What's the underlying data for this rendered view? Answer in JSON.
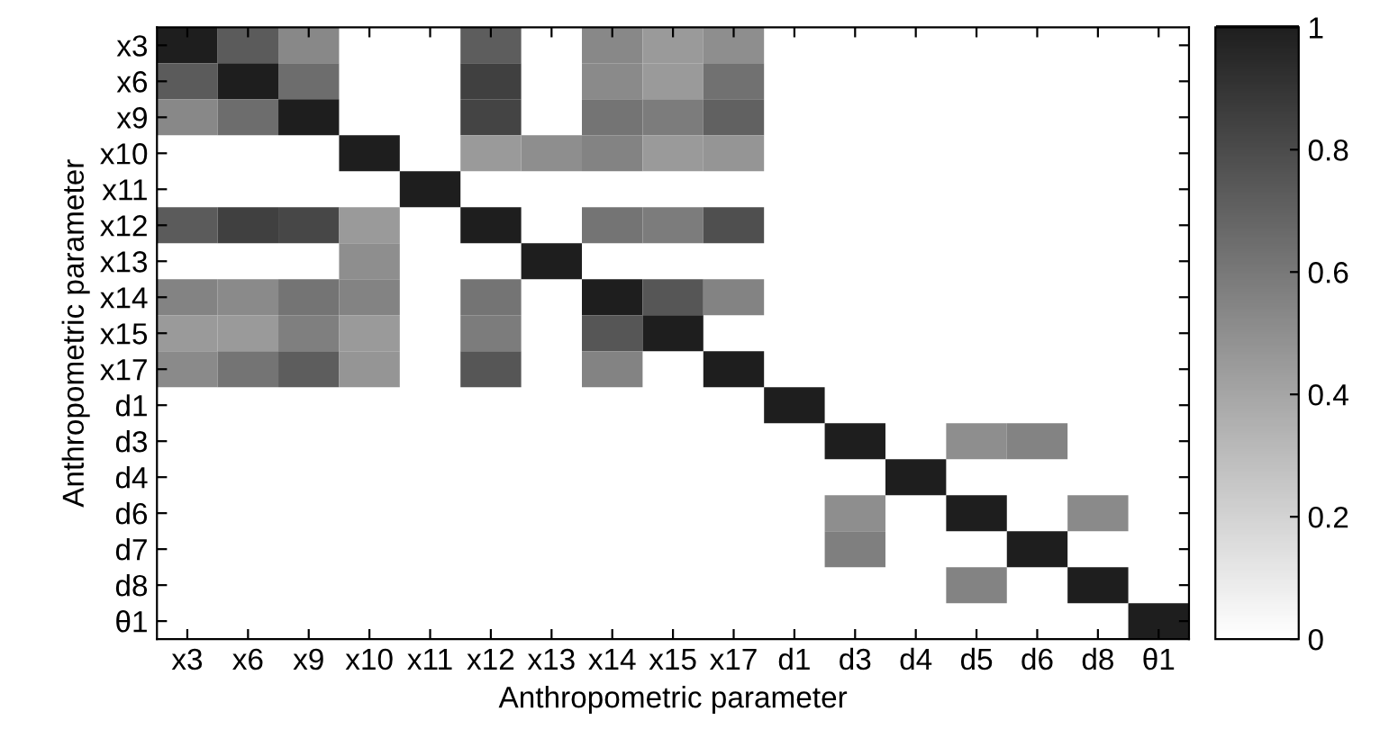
{
  "chart_data": {
    "type": "heatmap",
    "xlabel": "Anthropometric parameter",
    "ylabel": "Anthropometric parameter",
    "categories": [
      "x3",
      "x6",
      "x9",
      "x10",
      "x11",
      "x12",
      "x13",
      "x14",
      "x15",
      "x17",
      "d1",
      "d3",
      "d4",
      "d5",
      "d6",
      "d8",
      "θ1"
    ],
    "y_categories": [
      "x3",
      "x6",
      "x9",
      "x10",
      "x11",
      "x12",
      "x13",
      "x14",
      "x15",
      "x17",
      "d1",
      "d3",
      "d4",
      "d6",
      "d7",
      "d8",
      "θ1"
    ],
    "cells": [
      [
        1,
        0.73,
        0.53,
        null,
        null,
        0.72,
        null,
        0.53,
        0.45,
        0.5,
        null,
        null,
        null,
        null,
        null,
        null,
        null
      ],
      [
        0.73,
        1,
        0.65,
        null,
        null,
        0.85,
        null,
        0.52,
        0.45,
        0.63,
        null,
        null,
        null,
        null,
        null,
        null,
        null
      ],
      [
        0.53,
        0.65,
        1,
        null,
        null,
        0.83,
        null,
        0.62,
        0.58,
        0.7,
        null,
        null,
        null,
        null,
        null,
        null,
        null
      ],
      [
        null,
        null,
        null,
        1,
        null,
        0.45,
        0.5,
        0.55,
        0.45,
        0.47,
        null,
        null,
        null,
        null,
        null,
        null,
        null
      ],
      [
        null,
        null,
        null,
        null,
        1,
        null,
        null,
        null,
        null,
        null,
        null,
        null,
        null,
        null,
        null,
        null,
        null
      ],
      [
        0.73,
        0.85,
        0.82,
        0.45,
        null,
        1,
        null,
        0.62,
        0.58,
        0.78,
        null,
        null,
        null,
        null,
        null,
        null,
        null
      ],
      [
        null,
        null,
        null,
        0.5,
        null,
        null,
        1,
        null,
        null,
        null,
        null,
        null,
        null,
        null,
        null,
        null,
        null
      ],
      [
        0.55,
        0.52,
        0.62,
        0.55,
        null,
        0.62,
        null,
        1,
        0.75,
        0.55,
        null,
        null,
        null,
        null,
        null,
        null,
        null
      ],
      [
        0.45,
        0.45,
        0.57,
        0.45,
        null,
        0.58,
        null,
        0.75,
        1,
        null,
        null,
        null,
        null,
        null,
        null,
        null,
        null
      ],
      [
        0.52,
        0.62,
        0.72,
        0.47,
        null,
        0.75,
        null,
        0.55,
        null,
        1,
        null,
        null,
        null,
        null,
        null,
        null,
        null
      ],
      [
        null,
        null,
        null,
        null,
        null,
        null,
        null,
        null,
        null,
        null,
        1,
        null,
        null,
        null,
        null,
        null,
        null
      ],
      [
        null,
        null,
        null,
        null,
        null,
        null,
        null,
        null,
        null,
        null,
        null,
        1,
        null,
        0.5,
        0.55,
        null,
        null
      ],
      [
        null,
        null,
        null,
        null,
        null,
        null,
        null,
        null,
        null,
        null,
        null,
        null,
        1,
        null,
        null,
        null,
        null
      ],
      [
        null,
        null,
        null,
        null,
        null,
        null,
        null,
        null,
        null,
        null,
        null,
        0.5,
        null,
        1,
        null,
        0.52,
        null
      ],
      [
        null,
        null,
        null,
        null,
        null,
        null,
        null,
        null,
        null,
        null,
        null,
        0.57,
        null,
        null,
        1,
        null,
        null
      ],
      [
        null,
        null,
        null,
        null,
        null,
        null,
        null,
        null,
        null,
        null,
        null,
        null,
        null,
        0.55,
        null,
        1,
        null
      ],
      [
        null,
        null,
        null,
        null,
        null,
        null,
        null,
        null,
        null,
        null,
        null,
        null,
        null,
        null,
        null,
        null,
        1
      ]
    ],
    "clim": [
      0,
      1
    ],
    "cticks": [
      0,
      0.2,
      0.4,
      0.6,
      0.8,
      1
    ]
  }
}
